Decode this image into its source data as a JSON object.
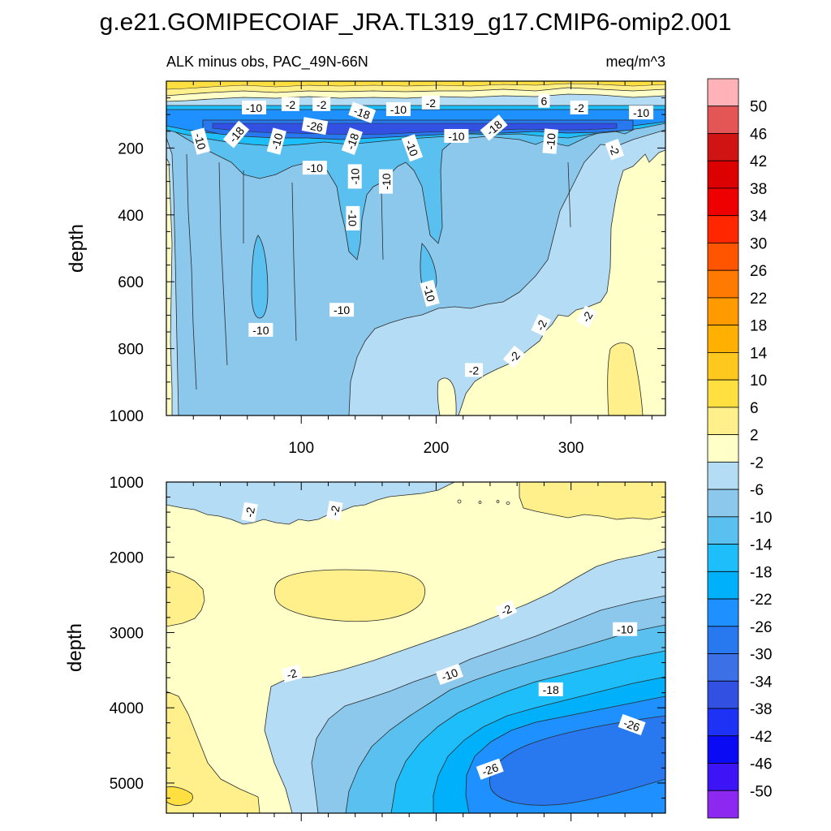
{
  "chart_data": {
    "type": "heatmap",
    "title": "g.e21.GOMIPECOIAF_JRA.TL319_g17.CMIP6-omip2.001",
    "subtitle_left": "ALK minus obs, PAC_49N-66N",
    "subtitle_right": "meq/m^3",
    "xlabel": "",
    "ylabel": "depth",
    "xlim": [
      0,
      370
    ],
    "x_ticks": [
      "100",
      "200",
      "300"
    ],
    "colorbar": {
      "labels": [
        "50",
        "46",
        "42",
        "38",
        "34",
        "30",
        "26",
        "22",
        "18",
        "14",
        "10",
        "6",
        "2",
        "-2",
        "-6",
        "-10",
        "-14",
        "-18",
        "-22",
        "-26",
        "-30",
        "-34",
        "-38",
        "-42",
        "-46",
        "-50"
      ],
      "colors": [
        "#FFB3B8",
        "#E45555",
        "#D01414",
        "#DD0000",
        "#EE0000",
        "#FF2600",
        "#FF5500",
        "#FF7A00",
        "#FF9A00",
        "#FFB000",
        "#FFC81E",
        "#FFE040",
        "#FFF08C",
        "#FFFFC8",
        "#B4DCF5",
        "#8CC8EC",
        "#5AC0F0",
        "#1EBEFA",
        "#00B0FA",
        "#1E90FF",
        "#2878F0",
        "#3C70E6",
        "#3250E1",
        "#1E32F5",
        "#0A0AF5",
        "#3C14F5",
        "#8C28F0"
      ]
    },
    "panels": [
      {
        "name": "upper",
        "ylim": [
          0,
          1000
        ],
        "y_ticks": [
          200,
          400,
          600,
          800,
          1000
        ],
        "y_tick_labels": [
          "200",
          "400",
          "600",
          "800",
          "1000"
        ],
        "contour_labels": [
          {
            "text": "-10",
            "x": 65,
            "y": 80,
            "angle": 0
          },
          {
            "text": "-2",
            "x": 92,
            "y": 70,
            "angle": 0
          },
          {
            "text": "-2",
            "x": 115,
            "y": 70,
            "angle": 0
          },
          {
            "text": "-18",
            "x": 145,
            "y": 95,
            "angle": 20
          },
          {
            "text": "-10",
            "x": 172,
            "y": 85,
            "angle": 0
          },
          {
            "text": "-2",
            "x": 196,
            "y": 65,
            "angle": 0
          },
          {
            "text": "6",
            "x": 280,
            "y": 60,
            "angle": 0
          },
          {
            "text": "-2",
            "x": 306,
            "y": 80,
            "angle": 0
          },
          {
            "text": "-10",
            "x": 352,
            "y": 95,
            "angle": 0
          },
          {
            "text": "-26",
            "x": 110,
            "y": 135,
            "angle": 10
          },
          {
            "text": "-18",
            "x": 52,
            "y": 160,
            "angle": -50
          },
          {
            "text": "-10",
            "x": 25,
            "y": 180,
            "angle": 75
          },
          {
            "text": "-10",
            "x": 82,
            "y": 180,
            "angle": -75
          },
          {
            "text": "-18",
            "x": 138,
            "y": 180,
            "angle": -70
          },
          {
            "text": "-10",
            "x": 182,
            "y": 200,
            "angle": 70
          },
          {
            "text": "-10",
            "x": 215,
            "y": 165,
            "angle": 0
          },
          {
            "text": "-18",
            "x": 243,
            "y": 140,
            "angle": -40
          },
          {
            "text": "-10",
            "x": 285,
            "y": 180,
            "angle": -85
          },
          {
            "text": "-2",
            "x": 332,
            "y": 205,
            "angle": 70
          },
          {
            "text": "-10",
            "x": 110,
            "y": 260,
            "angle": 0
          },
          {
            "text": "-10",
            "x": 140,
            "y": 285,
            "angle": -90
          },
          {
            "text": "-10",
            "x": 163,
            "y": 300,
            "angle": -90
          },
          {
            "text": "-10",
            "x": 138,
            "y": 410,
            "angle": 90
          },
          {
            "text": "-10",
            "x": 195,
            "y": 635,
            "angle": 75
          },
          {
            "text": "-10",
            "x": 130,
            "y": 685,
            "angle": 0
          },
          {
            "text": "-10",
            "x": 70,
            "y": 745,
            "angle": 0
          },
          {
            "text": "-2",
            "x": 278,
            "y": 730,
            "angle": -65
          },
          {
            "text": "-2",
            "x": 312,
            "y": 705,
            "angle": -60
          },
          {
            "text": "-2",
            "x": 258,
            "y": 825,
            "angle": -50
          },
          {
            "text": "-2",
            "x": 228,
            "y": 865,
            "angle": 0
          }
        ]
      },
      {
        "name": "lower",
        "ylim": [
          1000,
          5400
        ],
        "y_ticks": [
          1000,
          2000,
          3000,
          4000,
          5000
        ],
        "y_tick_labels": [
          "1000",
          "2000",
          "3000",
          "4000",
          "5000"
        ],
        "contour_labels": [
          {
            "text": "-2",
            "x": 62,
            "y": 1400,
            "angle": -80
          },
          {
            "text": "-2",
            "x": 125,
            "y": 1380,
            "angle": -80
          },
          {
            "text": "-2",
            "x": 252,
            "y": 2700,
            "angle": -25
          },
          {
            "text": "-10",
            "x": 340,
            "y": 2960,
            "angle": 0
          },
          {
            "text": "-2",
            "x": 93,
            "y": 3550,
            "angle": -15
          },
          {
            "text": "-10",
            "x": 210,
            "y": 3560,
            "angle": -20
          },
          {
            "text": "-18",
            "x": 285,
            "y": 3760,
            "angle": 0
          },
          {
            "text": "-26",
            "x": 345,
            "y": 4230,
            "angle": 20
          },
          {
            "text": "-26",
            "x": 240,
            "y": 4820,
            "angle": -20
          }
        ]
      }
    ]
  }
}
